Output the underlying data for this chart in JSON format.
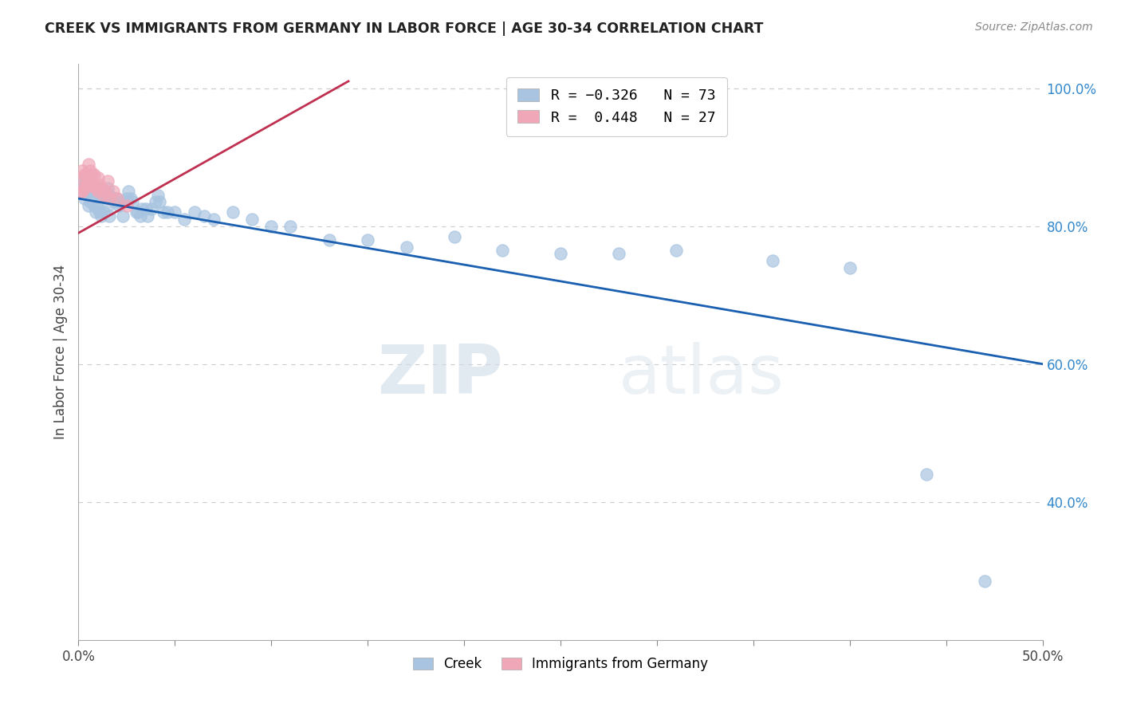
{
  "title": "CREEK VS IMMIGRANTS FROM GERMANY IN LABOR FORCE | AGE 30-34 CORRELATION CHART",
  "source": "Source: ZipAtlas.com",
  "ylabel": "In Labor Force | Age 30-34",
  "xlim": [
    0.0,
    0.5
  ],
  "ylim": [
    0.2,
    1.035
  ],
  "xtick_positions": [
    0.0,
    0.05,
    0.1,
    0.15,
    0.2,
    0.25,
    0.3,
    0.35,
    0.4,
    0.45,
    0.5
  ],
  "xticklabels": [
    "0.0%",
    "",
    "",
    "",
    "",
    "",
    "",
    "",
    "",
    "",
    "50.0%"
  ],
  "ytick_positions": [
    0.4,
    0.6,
    0.8,
    1.0
  ],
  "ytick_labels": [
    "40.0%",
    "60.0%",
    "80.0%",
    "100.0%"
  ],
  "legend_labels": [
    "Creek",
    "Immigrants from Germany"
  ],
  "creek_color": "#a8c4e0",
  "germany_color": "#f0a8b8",
  "creek_line_color": "#1a5fb0",
  "germany_line_color": "#c03050",
  "watermark_zip": "ZIP",
  "watermark_atlas": "atlas",
  "background_color": "#ffffff",
  "creek_x": [
    0.001,
    0.002,
    0.003,
    0.003,
    0.004,
    0.004,
    0.005,
    0.005,
    0.006,
    0.006,
    0.007,
    0.007,
    0.008,
    0.008,
    0.009,
    0.009,
    0.01,
    0.01,
    0.011,
    0.011,
    0.012,
    0.012,
    0.013,
    0.013,
    0.014,
    0.015,
    0.015,
    0.016,
    0.016,
    0.017,
    0.018,
    0.019,
    0.02,
    0.021,
    0.022,
    0.023,
    0.025,
    0.026,
    0.027,
    0.028,
    0.03,
    0.031,
    0.032,
    0.033,
    0.035,
    0.036,
    0.038,
    0.04,
    0.041,
    0.042,
    0.044,
    0.046,
    0.05,
    0.055,
    0.06,
    0.065,
    0.07,
    0.08,
    0.09,
    0.1,
    0.11,
    0.13,
    0.15,
    0.17,
    0.195,
    0.22,
    0.25,
    0.28,
    0.31,
    0.36,
    0.4,
    0.44,
    0.47
  ],
  "creek_y": [
    0.87,
    0.855,
    0.86,
    0.84,
    0.87,
    0.85,
    0.85,
    0.83,
    0.855,
    0.835,
    0.86,
    0.84,
    0.855,
    0.83,
    0.85,
    0.82,
    0.855,
    0.825,
    0.85,
    0.82,
    0.845,
    0.815,
    0.85,
    0.82,
    0.845,
    0.855,
    0.83,
    0.845,
    0.815,
    0.84,
    0.84,
    0.835,
    0.84,
    0.83,
    0.835,
    0.815,
    0.84,
    0.85,
    0.84,
    0.835,
    0.82,
    0.82,
    0.815,
    0.825,
    0.825,
    0.815,
    0.825,
    0.835,
    0.845,
    0.835,
    0.82,
    0.82,
    0.82,
    0.81,
    0.82,
    0.815,
    0.81,
    0.82,
    0.81,
    0.8,
    0.8,
    0.78,
    0.78,
    0.77,
    0.785,
    0.765,
    0.76,
    0.76,
    0.765,
    0.75,
    0.74,
    0.44,
    0.285
  ],
  "germany_x": [
    0.001,
    0.001,
    0.002,
    0.002,
    0.003,
    0.003,
    0.004,
    0.004,
    0.005,
    0.005,
    0.006,
    0.006,
    0.007,
    0.008,
    0.008,
    0.009,
    0.01,
    0.01,
    0.011,
    0.012,
    0.013,
    0.014,
    0.015,
    0.016,
    0.018,
    0.02,
    0.025
  ],
  "germany_y": [
    0.87,
    0.85,
    0.88,
    0.85,
    0.875,
    0.855,
    0.875,
    0.86,
    0.89,
    0.865,
    0.88,
    0.86,
    0.875,
    0.86,
    0.875,
    0.855,
    0.87,
    0.85,
    0.86,
    0.855,
    0.845,
    0.85,
    0.865,
    0.84,
    0.85,
    0.84,
    0.83
  ],
  "creek_trendline_x": [
    0.0,
    0.5
  ],
  "creek_trendline_y": [
    0.84,
    0.6
  ],
  "germany_trendline_x": [
    0.0,
    0.14
  ],
  "germany_trendline_y": [
    0.79,
    1.01
  ]
}
